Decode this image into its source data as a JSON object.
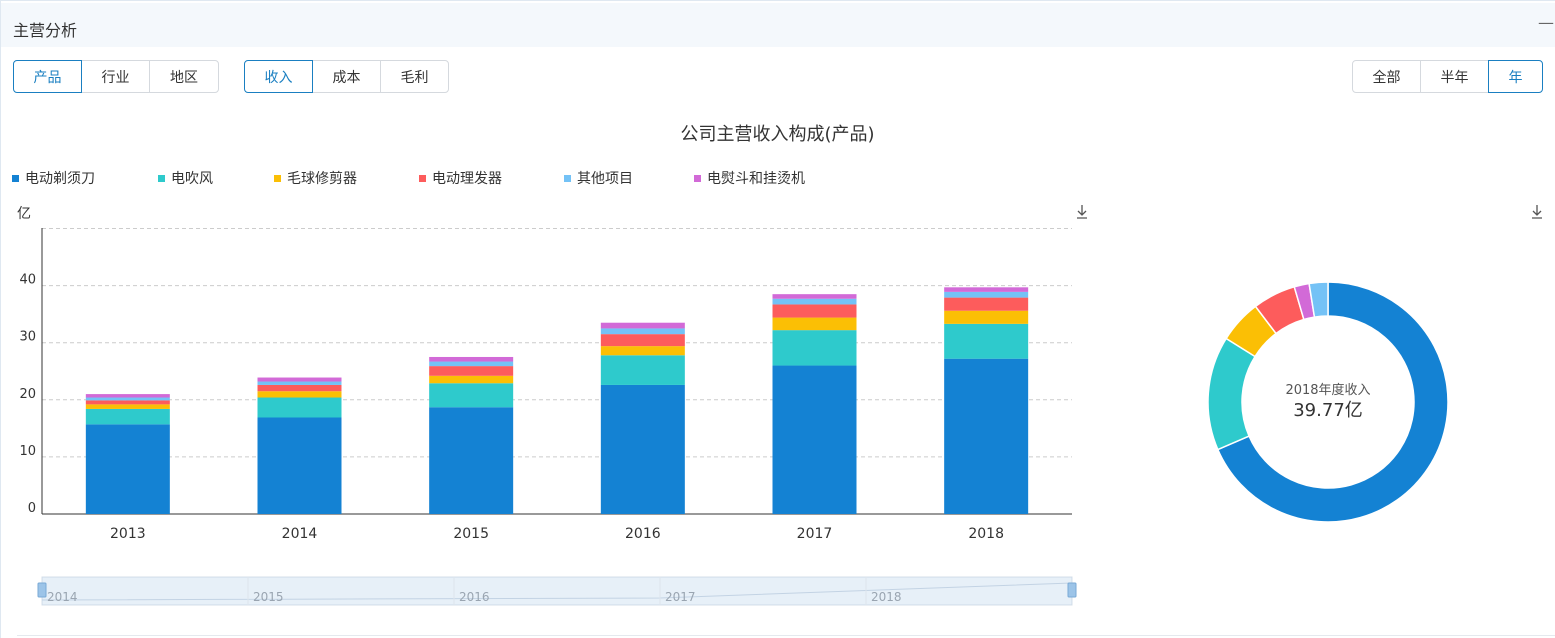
{
  "header": {
    "title": "主营分析",
    "collapse": "—"
  },
  "toolbar": {
    "dimension_tabs": [
      {
        "label": "产品",
        "active": true
      },
      {
        "label": "行业",
        "active": false
      },
      {
        "label": "地区",
        "active": false
      }
    ],
    "metric_tabs": [
      {
        "label": "收入",
        "active": true
      },
      {
        "label": "成本",
        "active": false
      },
      {
        "label": "毛利",
        "active": false
      }
    ],
    "period_tabs": [
      {
        "label": "全部",
        "active": false
      },
      {
        "label": "半年",
        "active": false
      },
      {
        "label": "年",
        "active": true
      }
    ]
  },
  "colors": {
    "accent": "#1a7fc1",
    "series": [
      "#1482d3",
      "#2ecacc",
      "#fbbf05",
      "#fd5c5c",
      "#74c2f6",
      "#d26ad7"
    ]
  },
  "icons": {
    "download": "download-icon"
  },
  "chart_data": [
    {
      "type": "bar",
      "stacked": true,
      "title": "公司主营收入构成(产品)",
      "ylabel": "亿",
      "ylim": [
        0,
        50
      ],
      "yticks": [
        0,
        10,
        20,
        30,
        40
      ],
      "grid": true,
      "legend_position": "top-left",
      "categories": [
        "2013",
        "2014",
        "2015",
        "2016",
        "2017",
        "2018"
      ],
      "series": [
        {
          "name": "电动剃须刀",
          "values": [
            15.7,
            16.9,
            18.7,
            22.6,
            26.0,
            27.2
          ]
        },
        {
          "name": "电吹风",
          "values": [
            2.7,
            3.5,
            4.2,
            5.2,
            6.2,
            6.1
          ]
        },
        {
          "name": "毛球修剪器",
          "values": [
            0.8,
            1.1,
            1.3,
            1.6,
            2.2,
            2.3
          ]
        },
        {
          "name": "电动理发器",
          "values": [
            0.7,
            1.1,
            1.7,
            2.1,
            2.3,
            2.3
          ]
        },
        {
          "name": "其他项目",
          "values": [
            0.5,
            0.6,
            0.8,
            1.0,
            1.0,
            1.0
          ]
        },
        {
          "name": "电熨斗和挂烫机",
          "values": [
            0.6,
            0.7,
            0.8,
            1.0,
            0.8,
            0.8
          ]
        }
      ],
      "slider": {
        "labels": [
          "2014",
          "2015",
          "2016",
          "2017",
          "2018"
        ]
      }
    },
    {
      "type": "pie",
      "donut": true,
      "center_caption": "2018年度收入",
      "center_value": "39.77亿",
      "labels": [
        "电动剃须刀",
        "电吹风",
        "毛球修剪器",
        "电动理发器",
        "电熨斗和挂烫机",
        "其他项目"
      ],
      "values": [
        27.2,
        6.1,
        2.3,
        2.3,
        0.8,
        1.0
      ]
    }
  ]
}
